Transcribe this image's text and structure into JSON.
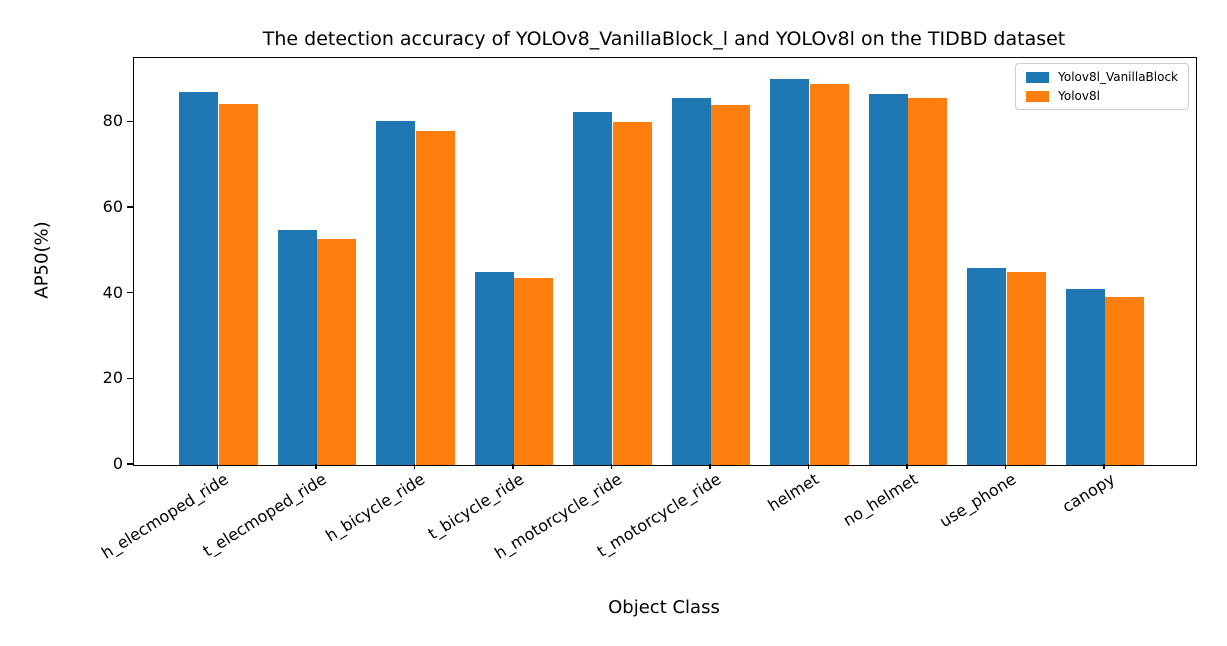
{
  "chart_data": {
    "type": "bar",
    "title": "The detection accuracy of YOLOv8_VanillaBlock_l and YOLOv8l on the TIDBD dataset",
    "xlabel": "Object Class",
    "ylabel": "AP50(%)",
    "categories": [
      "h_elecmoped_ride",
      "t_elecmoped_ride",
      "h_bicycle_ride",
      "t_bicycle_ride",
      "h_motorcycle_ride",
      "t_motorcycle_ride",
      "helmet",
      "no_helmet",
      "use_phone",
      "canopy"
    ],
    "series": [
      {
        "name": "Yolov8l_VanillaBlock",
        "color": "#1f77b4",
        "values": [
          87.0,
          54.8,
          80.2,
          45.0,
          82.3,
          85.6,
          90.0,
          86.5,
          46.0,
          41.2
        ]
      },
      {
        "name": "Yolov8l",
        "color": "#ff7f0e",
        "values": [
          84.2,
          52.7,
          78.0,
          43.7,
          80.0,
          84.0,
          88.9,
          85.6,
          45.0,
          39.2
        ]
      }
    ],
    "yticks": [
      0,
      20,
      40,
      60,
      80
    ],
    "ylim": [
      0,
      95
    ],
    "xtick_rotation_deg": -32,
    "legend_position": "upper right",
    "grid": false,
    "background_color": "#ffffff",
    "axis_color": "#000000"
  }
}
